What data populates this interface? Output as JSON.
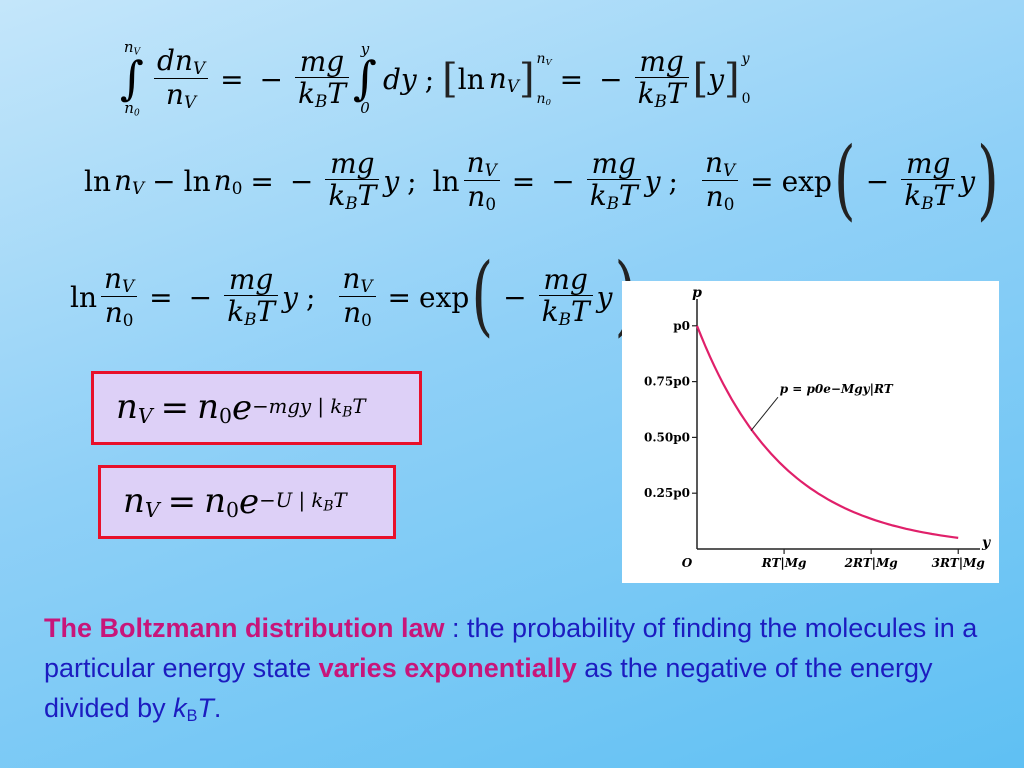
{
  "equations": {
    "ln": "ln",
    "exp": "exp",
    "n": "n",
    "V": "V",
    "zero": "0",
    "dn": "dn",
    "mg": "mg",
    "k": "k",
    "B": "B",
    "T": "T",
    "y": "y",
    "dy": "dy",
    "semicolon": ";",
    "equals": "=",
    "minus": "−",
    "e": "e",
    "boxed1_exponent": "−mgy | k",
    "boxed2_exponent": "−U | k"
  },
  "chart_data": {
    "type": "line",
    "x_axis_label": "y",
    "y_axis_label": "p",
    "x_ticks": [
      "O",
      "RT|Mg",
      "2RT|Mg",
      "3RT|Mg"
    ],
    "y_ticks": [
      "p0",
      "0.75p0",
      "0.50p0",
      "0.25p0"
    ],
    "curve_label": "p = p0e−Mgy|RT",
    "series": [
      {
        "x": [
          0,
          0.25,
          0.5,
          0.75,
          1,
          1.25,
          1.5,
          1.75,
          2,
          2.25,
          2.5,
          2.75,
          3
        ],
        "values": [
          1.0,
          0.7788,
          0.6065,
          0.4724,
          0.3679,
          0.2865,
          0.2231,
          0.1738,
          0.1353,
          0.1054,
          0.0821,
          0.0639,
          0.0498
        ]
      }
    ],
    "xlim": [
      0,
      3.25
    ],
    "ylim": [
      0,
      1.12
    ],
    "curve_color": "#e0206a",
    "grid": false
  },
  "caption": {
    "term": "The Boltzmann distribution law",
    "sep": " : ",
    "part1": "the probability of finding the molecules in a particular energy state ",
    "emph": "varies exponentially",
    "part2": " as the negative of the energy divided by ",
    "k": "k",
    "B": "B",
    "T": "T",
    "period": "."
  },
  "colors": {
    "emphasis": "#c8157a",
    "body_text": "#1c1cc0",
    "box_border": "#e8102a",
    "box_fill": "#ddd0f7"
  }
}
